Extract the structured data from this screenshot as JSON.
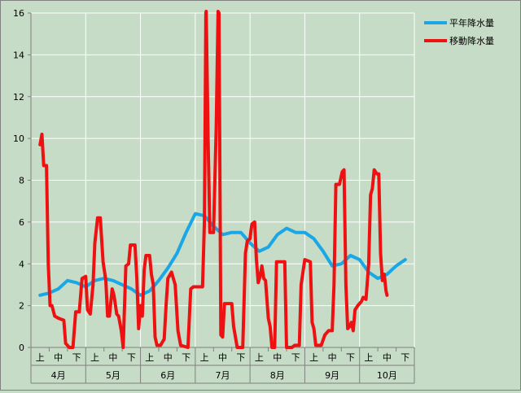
{
  "chart_data": {
    "type": "line",
    "ylim": [
      0,
      16
    ],
    "yticks": [
      0,
      2,
      4,
      6,
      8,
      10,
      12,
      14,
      16
    ],
    "x_sub_labels": [
      "上",
      "中",
      "下",
      "上",
      "中",
      "下",
      "上",
      "中",
      "下",
      "上",
      "中",
      "下",
      "上",
      "中",
      "下",
      "上",
      "中",
      "下",
      "上",
      "中",
      "下"
    ],
    "x_group_labels": [
      "4月",
      "5月",
      "6月",
      "7月",
      "8月",
      "9月",
      "10月"
    ],
    "grid": true,
    "legend_position": "top-right",
    "colors": {
      "normal": "#1aa7e6",
      "moving": "#ee1111",
      "plot_bg": "#c6dcc6",
      "grid": "#ffffff"
    },
    "series": [
      {
        "name": "平年降水量",
        "color": "#1aa7e6",
        "points": [
          [
            0,
            2.5
          ],
          [
            0.5,
            2.6
          ],
          [
            1,
            2.8
          ],
          [
            1.5,
            3.2
          ],
          [
            2,
            3.1
          ],
          [
            2.5,
            2.9
          ],
          [
            3,
            3.2
          ],
          [
            3.5,
            3.3
          ],
          [
            4,
            3.2
          ],
          [
            4.5,
            3.0
          ],
          [
            5,
            2.8
          ],
          [
            5.5,
            2.5
          ],
          [
            6,
            2.7
          ],
          [
            6.5,
            3.2
          ],
          [
            7,
            3.8
          ],
          [
            7.5,
            4.5
          ],
          [
            8,
            5.5
          ],
          [
            8.5,
            6.4
          ],
          [
            9,
            6.3
          ],
          [
            9.5,
            5.8
          ],
          [
            10,
            5.4
          ],
          [
            10.5,
            5.5
          ],
          [
            11,
            5.5
          ],
          [
            11.5,
            5.0
          ],
          [
            12,
            4.6
          ],
          [
            12.5,
            4.8
          ],
          [
            13,
            5.4
          ],
          [
            13.5,
            5.7
          ],
          [
            14,
            5.5
          ],
          [
            14.5,
            5.5
          ],
          [
            15,
            5.2
          ],
          [
            15.5,
            4.6
          ],
          [
            16,
            3.9
          ],
          [
            16.5,
            4.0
          ],
          [
            17,
            4.4
          ],
          [
            17.5,
            4.2
          ],
          [
            18,
            3.6
          ],
          [
            18.5,
            3.3
          ],
          [
            19,
            3.5
          ],
          [
            19.5,
            3.9
          ],
          [
            20,
            4.2
          ]
        ]
      },
      {
        "name": "移動降水量",
        "color": "#ee1111",
        "points": [
          [
            0,
            9.7
          ],
          [
            0.1,
            10.2
          ],
          [
            0.2,
            8.7
          ],
          [
            0.35,
            8.7
          ],
          [
            0.45,
            4.0
          ],
          [
            0.55,
            2.0
          ],
          [
            0.65,
            2.0
          ],
          [
            0.8,
            1.5
          ],
          [
            1.0,
            1.4
          ],
          [
            1.3,
            1.3
          ],
          [
            1.4,
            0.2
          ],
          [
            1.6,
            0.0
          ],
          [
            1.8,
            0.0
          ],
          [
            1.95,
            1.7
          ],
          [
            2.15,
            1.7
          ],
          [
            2.3,
            3.3
          ],
          [
            2.5,
            3.4
          ],
          [
            2.6,
            1.8
          ],
          [
            2.75,
            1.6
          ],
          [
            2.9,
            3.0
          ],
          [
            3.0,
            5.0
          ],
          [
            3.15,
            6.2
          ],
          [
            3.3,
            6.2
          ],
          [
            3.45,
            4.1
          ],
          [
            3.6,
            3.2
          ],
          [
            3.7,
            1.5
          ],
          [
            3.8,
            1.5
          ],
          [
            3.95,
            2.8
          ],
          [
            4.05,
            2.5
          ],
          [
            4.2,
            1.6
          ],
          [
            4.3,
            1.5
          ],
          [
            4.45,
            0.8
          ],
          [
            4.55,
            0.0
          ],
          [
            4.7,
            3.9
          ],
          [
            4.85,
            4.0
          ],
          [
            4.95,
            4.9
          ],
          [
            5.2,
            4.9
          ],
          [
            5.3,
            3.3
          ],
          [
            5.4,
            0.9
          ],
          [
            5.5,
            2.0
          ],
          [
            5.6,
            1.5
          ],
          [
            5.7,
            3.7
          ],
          [
            5.8,
            4.4
          ],
          [
            6.0,
            4.4
          ],
          [
            6.1,
            3.5
          ],
          [
            6.2,
            3.0
          ],
          [
            6.3,
            0.5
          ],
          [
            6.4,
            0.1
          ],
          [
            6.6,
            0.1
          ],
          [
            6.8,
            0.4
          ],
          [
            6.9,
            2.0
          ],
          [
            7.0,
            3.3
          ],
          [
            7.2,
            3.6
          ],
          [
            7.4,
            3.0
          ],
          [
            7.55,
            0.8
          ],
          [
            7.7,
            0.1
          ],
          [
            8.1,
            0.0
          ],
          [
            8.25,
            2.8
          ],
          [
            8.4,
            2.9
          ],
          [
            8.9,
            2.9
          ],
          [
            9.0,
            6.0
          ],
          [
            9.08,
            16.0
          ],
          [
            9.1,
            16.1
          ],
          [
            9.2,
            10.0
          ],
          [
            9.3,
            5.5
          ],
          [
            9.5,
            5.5
          ],
          [
            9.65,
            10.5
          ],
          [
            9.75,
            16.1
          ],
          [
            9.8,
            16.0
          ],
          [
            9.9,
            0.6
          ],
          [
            10.0,
            0.5
          ],
          [
            10.1,
            2.1
          ],
          [
            10.5,
            2.1
          ],
          [
            10.6,
            1.0
          ],
          [
            10.8,
            0.0
          ],
          [
            11.1,
            0.0
          ],
          [
            11.25,
            4.5
          ],
          [
            11.35,
            5.1
          ],
          [
            11.5,
            5.2
          ],
          [
            11.6,
            5.9
          ],
          [
            11.75,
            6.0
          ],
          [
            11.85,
            4.2
          ],
          [
            11.95,
            3.1
          ],
          [
            12.05,
            3.4
          ],
          [
            12.15,
            3.9
          ],
          [
            12.25,
            3.3
          ],
          [
            12.35,
            3.2
          ],
          [
            12.5,
            1.4
          ],
          [
            12.6,
            1.0
          ],
          [
            12.7,
            0.0
          ],
          [
            12.85,
            0.0
          ],
          [
            12.95,
            4.1
          ],
          [
            13.4,
            4.1
          ],
          [
            13.5,
            0.0
          ],
          [
            13.8,
            0.0
          ],
          [
            13.95,
            0.1
          ],
          [
            14.2,
            0.1
          ],
          [
            14.3,
            3.0
          ],
          [
            14.5,
            4.2
          ],
          [
            14.8,
            4.1
          ],
          [
            14.9,
            1.2
          ],
          [
            15.0,
            0.9
          ],
          [
            15.1,
            0.1
          ],
          [
            15.4,
            0.1
          ],
          [
            15.6,
            0.6
          ],
          [
            15.8,
            0.8
          ],
          [
            16.0,
            0.8
          ],
          [
            16.1,
            3.0
          ],
          [
            16.2,
            7.8
          ],
          [
            16.4,
            7.8
          ],
          [
            16.55,
            8.4
          ],
          [
            16.65,
            8.5
          ],
          [
            16.75,
            3.0
          ],
          [
            16.85,
            0.9
          ],
          [
            16.95,
            1.0
          ],
          [
            17.05,
            1.2
          ],
          [
            17.15,
            0.8
          ],
          [
            17.25,
            1.8
          ],
          [
            17.4,
            2.0
          ],
          [
            17.6,
            2.2
          ],
          [
            17.7,
            2.4
          ],
          [
            17.85,
            2.3
          ],
          [
            18.0,
            4.0
          ],
          [
            18.1,
            7.3
          ],
          [
            18.2,
            7.6
          ],
          [
            18.3,
            8.5
          ],
          [
            18.45,
            8.3
          ],
          [
            18.55,
            8.3
          ],
          [
            18.65,
            4.5
          ],
          [
            18.75,
            3.2
          ],
          [
            18.85,
            3.5
          ],
          [
            18.95,
            2.7
          ],
          [
            19.0,
            2.5
          ]
        ]
      }
    ]
  }
}
